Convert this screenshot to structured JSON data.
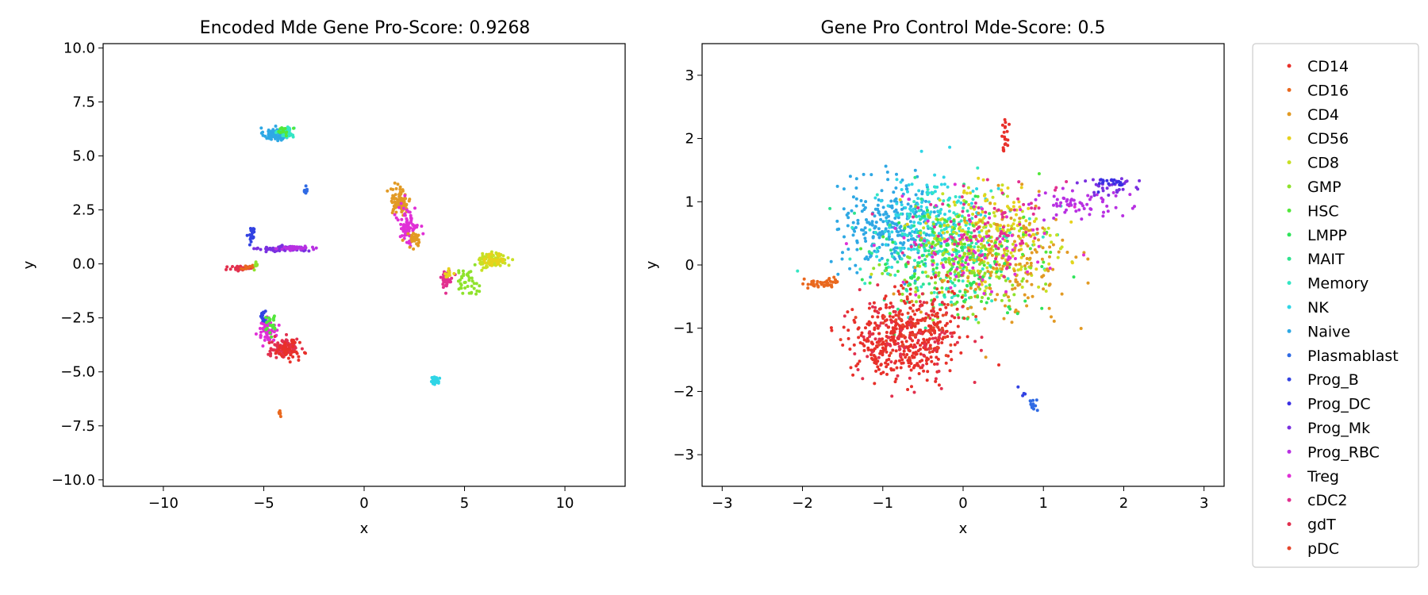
{
  "palette": [
    "#e8302a",
    "#e9681e",
    "#e29a24",
    "#e7d21c",
    "#c8e024",
    "#8fe22c",
    "#52e73a",
    "#2fe45a",
    "#2ee38e",
    "#34e6c4",
    "#2fd5e6",
    "#2ea8e4",
    "#2f6ae4",
    "#3242e2",
    "#3a2fe3",
    "#7a30e0",
    "#b830e2",
    "#e030d6",
    "#e23090",
    "#e2304e",
    "#e5462c"
  ],
  "legend": [
    "CD14",
    "CD16",
    "CD4",
    "CD56",
    "CD8",
    "GMP",
    "HSC",
    "LMPP",
    "MAIT",
    "Memory",
    "NK",
    "Naive",
    "Plasmablast",
    "Prog_B",
    "Prog_DC",
    "Prog_Mk",
    "Prog_RBC",
    "Treg",
    "cDC2",
    "gdT",
    "pDC"
  ],
  "chart_data": [
    {
      "type": "scatter",
      "title": "Encoded Mde Gene Pro-Score: 0.9268",
      "xlabel": "x",
      "ylabel": "y",
      "xlim": [
        -13,
        13
      ],
      "ylim": [
        -10.3,
        10.2
      ],
      "xticks": [
        -10,
        -5,
        0,
        5,
        10
      ],
      "xtick_labels": [
        "−10",
        "−5",
        "0",
        "5",
        "10"
      ],
      "yticks": [
        -10,
        -7.5,
        -5,
        -2.5,
        0,
        2.5,
        5,
        7.5,
        10
      ],
      "ytick_labels": [
        "−10.0",
        "−7.5",
        "−5.0",
        "−2.5",
        "0.0",
        "2.5",
        "5.0",
        "7.5",
        "10.0"
      ],
      "clusters": [
        {
          "series": "Naive",
          "center": [
            -4.4,
            6.0
          ],
          "spread": [
            0.3,
            0.15
          ],
          "n": 90
        },
        {
          "series": "Memory",
          "center": [
            -3.9,
            6.1
          ],
          "spread": [
            0.2,
            0.12
          ],
          "n": 40
        },
        {
          "series": "HSC",
          "center": [
            -4.0,
            6.2
          ],
          "spread": [
            0.15,
            0.1
          ],
          "n": 15
        },
        {
          "series": "Plasmablast",
          "center": [
            -2.9,
            3.35
          ],
          "spread": [
            0.05,
            0.1
          ],
          "n": 12
        },
        {
          "series": "Prog_B",
          "center": [
            -5.6,
            1.4
          ],
          "spread": [
            0.08,
            0.2
          ],
          "n": 20
        },
        {
          "series": "Prog_Mk",
          "center": [
            -4.0,
            0.7
          ],
          "spread": [
            0.6,
            0.06
          ],
          "n": 90
        },
        {
          "series": "Prog_RBC",
          "center": [
            -3.4,
            0.72
          ],
          "spread": [
            0.4,
            0.05
          ],
          "n": 40
        },
        {
          "series": "gdT",
          "center": [
            -6.1,
            -0.2
          ],
          "spread": [
            0.3,
            0.08
          ],
          "n": 30
        },
        {
          "series": "CD16",
          "center": [
            -5.8,
            -0.15
          ],
          "spread": [
            0.2,
            0.06
          ],
          "n": 12
        },
        {
          "series": "GMP",
          "center": [
            -5.4,
            -0.1
          ],
          "spread": [
            0.1,
            0.1
          ],
          "n": 8
        },
        {
          "series": "CD4",
          "center": [
            1.8,
            2.9
          ],
          "spread": [
            0.25,
            0.3
          ],
          "n": 90
        },
        {
          "series": "Treg",
          "center": [
            2.2,
            1.8
          ],
          "spread": [
            0.25,
            0.45
          ],
          "n": 80
        },
        {
          "series": "CD4",
          "center": [
            2.5,
            1.1
          ],
          "spread": [
            0.2,
            0.2
          ],
          "n": 30
        },
        {
          "series": "cDC2",
          "center": [
            4.1,
            -0.7
          ],
          "spread": [
            0.15,
            0.2
          ],
          "n": 35
        },
        {
          "series": "CD56",
          "center": [
            4.2,
            -0.4
          ],
          "spread": [
            0.15,
            0.1
          ],
          "n": 10
        },
        {
          "series": "GMP",
          "center": [
            5.1,
            -0.8
          ],
          "spread": [
            0.3,
            0.3
          ],
          "n": 40
        },
        {
          "series": "CD8",
          "center": [
            6.4,
            0.15
          ],
          "spread": [
            0.35,
            0.18
          ],
          "n": 90
        },
        {
          "series": "CD56",
          "center": [
            6.5,
            0.2
          ],
          "spread": [
            0.25,
            0.15
          ],
          "n": 30
        },
        {
          "series": "Prog_B",
          "center": [
            -5.0,
            -2.5
          ],
          "spread": [
            0.1,
            0.15
          ],
          "n": 20
        },
        {
          "series": "Treg",
          "center": [
            -4.8,
            -3.1
          ],
          "spread": [
            0.25,
            0.25
          ],
          "n": 60
        },
        {
          "series": "HSC",
          "center": [
            -4.6,
            -2.8
          ],
          "spread": [
            0.2,
            0.25
          ],
          "n": 20
        },
        {
          "series": "gdT",
          "center": [
            -4.0,
            -3.9
          ],
          "spread": [
            0.35,
            0.22
          ],
          "n": 100
        },
        {
          "series": "CD14",
          "center": [
            -3.8,
            -4.0
          ],
          "spread": [
            0.3,
            0.2
          ],
          "n": 50
        },
        {
          "series": "NK",
          "center": [
            3.5,
            -5.4
          ],
          "spread": [
            0.1,
            0.12
          ],
          "n": 30
        },
        {
          "series": "CD16",
          "center": [
            -4.2,
            -7.0
          ],
          "spread": [
            0.04,
            0.1
          ],
          "n": 10
        }
      ]
    },
    {
      "type": "scatter",
      "title": "Gene Pro Control Mde-Score: 0.5",
      "xlabel": "x",
      "ylabel": "y",
      "xlim": [
        -3.25,
        3.25
      ],
      "ylim": [
        -3.5,
        3.5
      ],
      "xticks": [
        -3,
        -2,
        -1,
        0,
        1,
        2,
        3
      ],
      "xtick_labels": [
        "−3",
        "−2",
        "−1",
        "0",
        "1",
        "2",
        "3"
      ],
      "yticks": [
        -3,
        -2,
        -1,
        0,
        1,
        2,
        3
      ],
      "ytick_labels": [
        "−3",
        "−2",
        "−1",
        "0",
        "1",
        "2",
        "3"
      ],
      "clusters": [
        {
          "series": "Naive",
          "center": [
            -0.9,
            0.65
          ],
          "spread": [
            0.3,
            0.35
          ],
          "n": 260
        },
        {
          "series": "NK",
          "center": [
            -0.4,
            0.7
          ],
          "spread": [
            0.35,
            0.35
          ],
          "n": 160
        },
        {
          "series": "Memory",
          "center": [
            -0.2,
            0.3
          ],
          "spread": [
            0.45,
            0.45
          ],
          "n": 180
        },
        {
          "series": "MAIT",
          "center": [
            -0.3,
            0.1
          ],
          "spread": [
            0.5,
            0.5
          ],
          "n": 100
        },
        {
          "series": "CD8",
          "center": [
            0.3,
            0.3
          ],
          "spread": [
            0.45,
            0.45
          ],
          "n": 180
        },
        {
          "series": "CD56",
          "center": [
            0.3,
            0.5
          ],
          "spread": [
            0.4,
            0.4
          ],
          "n": 100
        },
        {
          "series": "CD4",
          "center": [
            0.5,
            0.0
          ],
          "spread": [
            0.45,
            0.45
          ],
          "n": 180
        },
        {
          "series": "GMP",
          "center": [
            0.0,
            -0.1
          ],
          "spread": [
            0.45,
            0.4
          ],
          "n": 110
        },
        {
          "series": "HSC",
          "center": [
            0.0,
            0.2
          ],
          "spread": [
            0.5,
            0.45
          ],
          "n": 70
        },
        {
          "series": "LMPP",
          "center": [
            -0.2,
            0.0
          ],
          "spread": [
            0.5,
            0.45
          ],
          "n": 70
        },
        {
          "series": "Treg",
          "center": [
            0.2,
            0.3
          ],
          "spread": [
            0.5,
            0.4
          ],
          "n": 90
        },
        {
          "series": "cDC2",
          "center": [
            0.3,
            0.6
          ],
          "spread": [
            0.45,
            0.35
          ],
          "n": 90
        },
        {
          "series": "Prog_RBC",
          "center": [
            1.4,
            1.0
          ],
          "spread": [
            0.28,
            0.15
          ],
          "n": 60
        },
        {
          "series": "Prog_Mk",
          "center": [
            1.8,
            1.25
          ],
          "spread": [
            0.18,
            0.08
          ],
          "n": 30
        },
        {
          "series": "Prog_DC",
          "center": [
            1.85,
            1.3
          ],
          "spread": [
            0.1,
            0.05
          ],
          "n": 20
        },
        {
          "series": "CD14",
          "center": [
            -0.75,
            -1.15
          ],
          "spread": [
            0.32,
            0.32
          ],
          "n": 420
        },
        {
          "series": "gdT",
          "center": [
            -0.6,
            -1.1
          ],
          "spread": [
            0.35,
            0.35
          ],
          "n": 90
        },
        {
          "series": "pDC",
          "center": [
            -0.5,
            -0.9
          ],
          "spread": [
            0.35,
            0.3
          ],
          "n": 50
        },
        {
          "series": "CD16",
          "center": [
            -1.75,
            -0.3
          ],
          "spread": [
            0.13,
            0.04
          ],
          "n": 40
        },
        {
          "series": "CD14",
          "center": [
            0.52,
            2.05
          ],
          "spread": [
            0.03,
            0.15
          ],
          "n": 20
        },
        {
          "series": "Plasmablast",
          "center": [
            0.88,
            -2.2
          ],
          "spread": [
            0.03,
            0.05
          ],
          "n": 12
        },
        {
          "series": "Prog_B",
          "center": [
            0.75,
            -2.05
          ],
          "spread": [
            0.05,
            0.05
          ],
          "n": 5
        }
      ]
    }
  ]
}
